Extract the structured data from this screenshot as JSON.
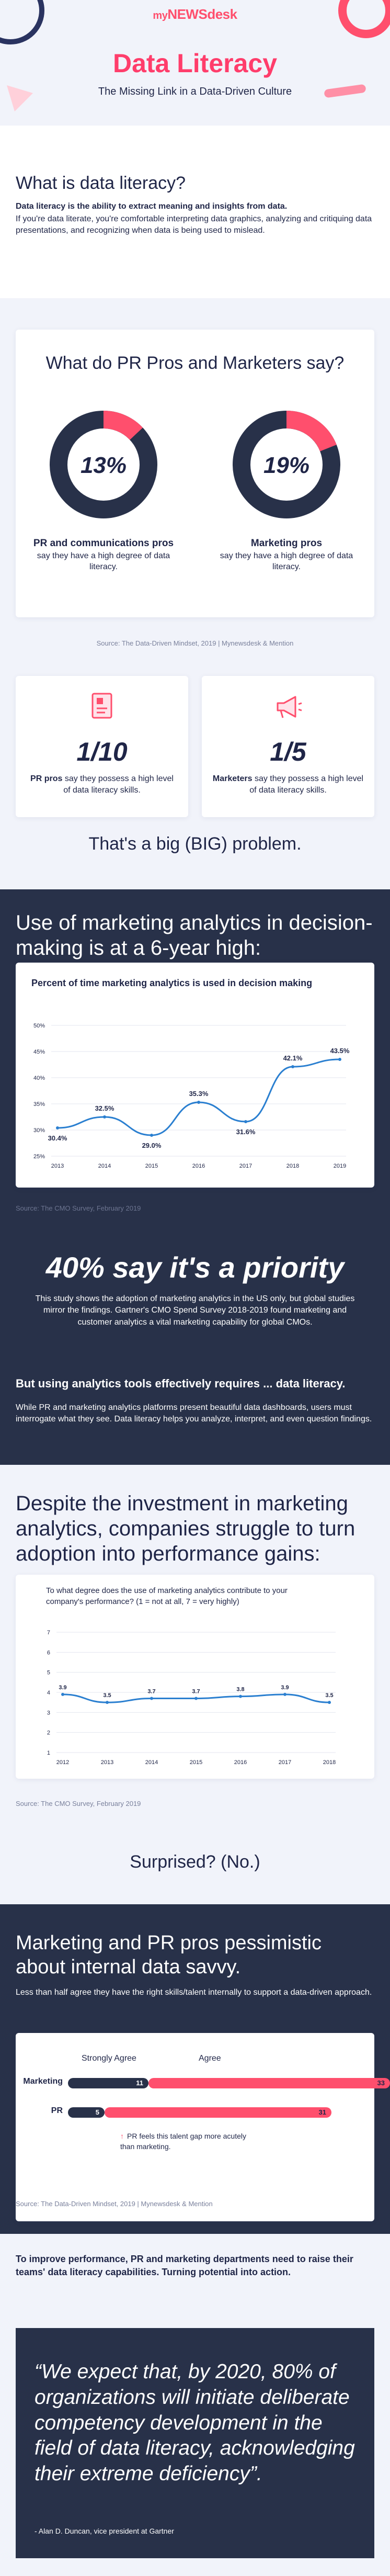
{
  "logo": {
    "prefix": "my",
    "name": "NEWSdesk"
  },
  "hero": {
    "title": "Data Literacy",
    "subtitle": "The Missing Link in a Data-Driven Culture"
  },
  "what_is": {
    "heading": "What is data literacy?",
    "lead": "Data literacy is the ability to extract meaning and insights from data.",
    "body": "If you're data literate, you're comfortable interpreting data graphics, analyzing and critiquing data presentations, and recognizing when data is being used to mislead."
  },
  "say": {
    "heading": "What do PR Pros and Marketers say?",
    "donuts": [
      {
        "value_text": "13%",
        "title": "PR and communications pros",
        "desc": "say they have a high degree of data literacy."
      },
      {
        "value_text": "19%",
        "title": "Marketing pros",
        "desc": "say they have a high degree of data literacy."
      }
    ],
    "source": "Source: The Data-Driven Mindset, 2019  |  Mynewsdesk & Mention",
    "stats": [
      {
        "value": "1/10",
        "bold": "PR pros",
        "text": " say they possess a high level of data literacy skills."
      },
      {
        "value": "1/5",
        "bold": "Marketers",
        "text": " say they possess a high level of data literacy skills."
      }
    ],
    "problem": "That's a big (BIG) problem."
  },
  "analytics": {
    "heading": "Use of marketing analytics in decision-making is at a 6-year high:",
    "source": "Source: The CMO Survey, February 2019",
    "priority": "40% say it's a priority",
    "priority_text": "This study shows the adoption of marketing analytics in the US only, but global studies mirror the findings. Gartner's CMO Spend Survey 2018-2019 found marketing and customer analytics a vital marketing capability for global CMOs.",
    "but_heading": "But using analytics tools effectively requires ... data literacy.",
    "but_text": "While PR and marketing analytics platforms present beautiful data dashboards, users must interrogate what they see. Data literacy helps you analyze, interpret, and even question findings."
  },
  "despite": {
    "heading": "Despite the investment in marketing analytics, companies struggle to turn adoption into performance gains:",
    "source": "Source: The CMO Survey, February 2019",
    "surprised": "Surprised? (No.)"
  },
  "pess": {
    "heading": "Marketing and PR pros pessimistic about internal data savvy.",
    "intro": "Less than half agree they have the right skills/talent internally to support a data-driven approach.",
    "legend_strong": "Strongly Agree",
    "legend_agree": "Agree",
    "note": "PR feels this talent gap more acutely than marketing.",
    "source": "Source: The Data-Driven Mindset, 2019  |  Mynewsdesk & Mention"
  },
  "bottom": {
    "lead": "To improve performance, PR and marketing departments need to raise their teams' data literacy capabilities. Turning potential into action.",
    "quote": "“We expect that, by 2020, 80% of organizations will initiate deliberate competency development in the field of data literacy, acknowledging their extreme deficiency”.",
    "attribution": "- Alan D. Duncan, vice president at Gartner"
  },
  "colors": {
    "navy": "#283149",
    "pink": "#ff4f6d",
    "ink": "#1f2547",
    "bg": "#f1f3fa"
  },
  "chart_data": [
    {
      "type": "pie",
      "title": "",
      "slices": [
        {
          "label": "PR and communications pros",
          "value": 13
        },
        {
          "label": "",
          "value": 87
        }
      ]
    },
    {
      "type": "pie",
      "title": "",
      "slices": [
        {
          "label": "Marketing pros",
          "value": 19
        },
        {
          "label": "",
          "value": 81
        }
      ]
    },
    {
      "type": "line",
      "title": "Percent of time marketing analytics is used in decision making",
      "x": [
        "2013",
        "2014",
        "2015",
        "2016",
        "2017",
        "2018",
        "2019"
      ],
      "series": [
        {
          "values": [
            30.4,
            32.5,
            29.0,
            35.3,
            31.6,
            42.1,
            43.5
          ]
        }
      ],
      "data_labels": [
        "30.4%",
        "32.5%",
        "29.0%",
        "35.3%",
        "31.6%",
        "42.1%",
        "43.5%"
      ],
      "yticks": [
        "25%",
        "30%",
        "35%",
        "40%",
        "45%",
        "50%"
      ],
      "ylim": [
        25,
        50
      ],
      "xlabel": "",
      "ylabel": ""
    },
    {
      "type": "line",
      "title": "To what degree does the use of marketing analytics contribute to your company's performance? (1 = not at all, 7 = very highly)",
      "x": [
        "2012",
        "2013",
        "2014",
        "2015",
        "2016",
        "2017",
        "2018"
      ],
      "series": [
        {
          "values": [
            3.9,
            3.5,
            3.7,
            3.7,
            3.8,
            3.9,
            3.5
          ]
        }
      ],
      "data_labels": [
        "3.9",
        "3.5",
        "3.7",
        "3.7",
        "3.8",
        "3.9",
        "3.5"
      ],
      "yticks": [
        "1",
        "2",
        "3",
        "4",
        "5",
        "6",
        "7"
      ],
      "ylim": [
        1,
        7
      ],
      "xlabel": "",
      "ylabel": ""
    },
    {
      "type": "bar",
      "title": "",
      "categories": [
        "Marketing",
        "PR"
      ],
      "series": [
        {
          "name": "Strongly Agree",
          "values": [
            11,
            5
          ]
        },
        {
          "name": "Agree",
          "values": [
            33,
            31
          ]
        }
      ]
    }
  ]
}
